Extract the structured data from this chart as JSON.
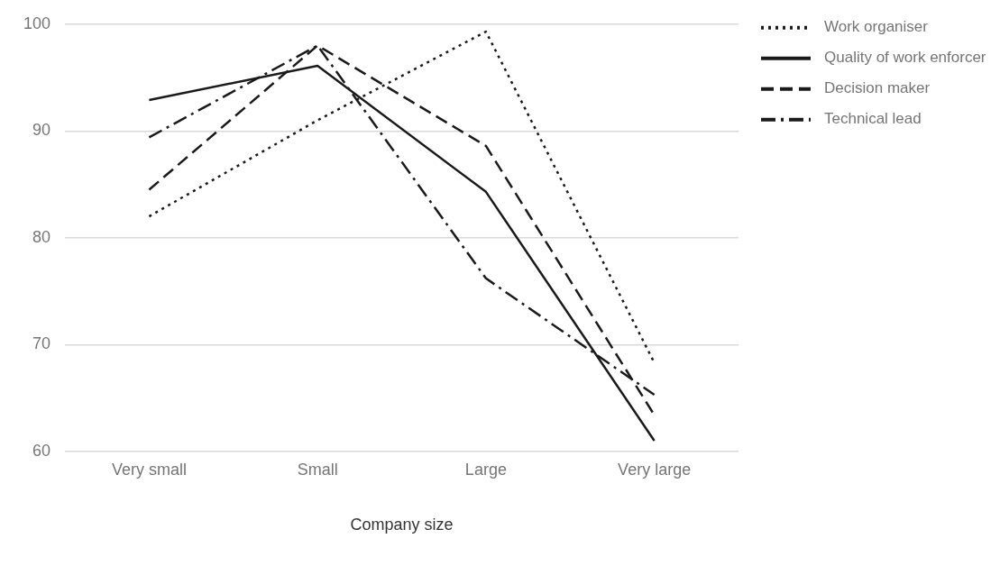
{
  "chart_data": {
    "type": "line",
    "xlabel": "Company size",
    "categories": [
      "Very small",
      "Small",
      "Large",
      "Very large"
    ],
    "series": [
      {
        "name": "Work organiser",
        "color": "#1a1a1a",
        "line_style": "dotted",
        "values": [
          82,
          91,
          99.3,
          68.3
        ]
      },
      {
        "name": "Quality of work enforcer",
        "color": "#1a1a1a",
        "line_style": "solid",
        "values": [
          92.9,
          96.1,
          84.3,
          61
        ]
      },
      {
        "name": "Decision maker",
        "color": "#1a1a1a",
        "line_style": "dashed",
        "values": [
          84.5,
          98,
          88.6,
          63.4
        ]
      },
      {
        "name": "Technical lead",
        "color": "#1a1a1a",
        "line_style": "dashdot",
        "values": [
          89.4,
          98,
          76.2,
          65.3
        ]
      }
    ],
    "ylim": [
      60,
      100
    ],
    "yticks": [
      60,
      70,
      80,
      90,
      100
    ],
    "grid": "y",
    "legend": "top right",
    "marker": "none"
  }
}
